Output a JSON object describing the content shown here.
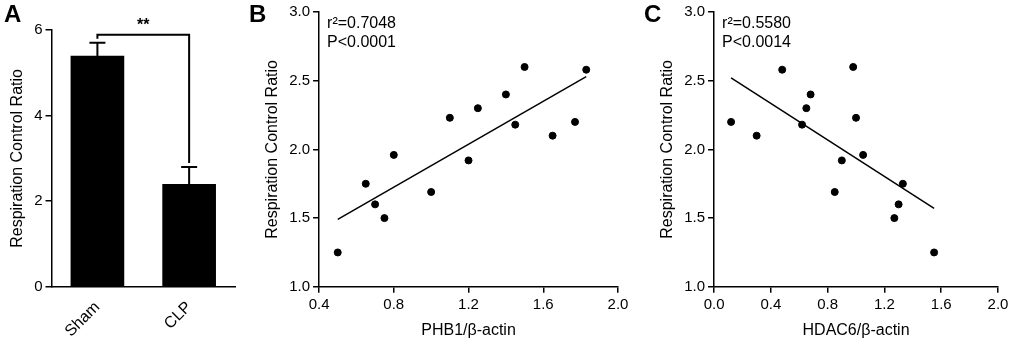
{
  "chart_data": [
    {
      "panel": "A",
      "type": "bar",
      "categories": [
        "Sham",
        "CLP"
      ],
      "values": [
        5.4,
        2.4
      ],
      "errors": [
        0.3,
        0.4
      ],
      "color": "#000000",
      "y_label": "Respiration Control Ratio",
      "ylim": [
        0,
        6
      ],
      "yticks": [
        0,
        2,
        4,
        6
      ],
      "grid": false,
      "significance": {
        "pair": [
          "Sham",
          "CLP"
        ],
        "label": "**"
      }
    },
    {
      "panel": "B",
      "type": "scatter",
      "x": [
        0.5,
        0.65,
        0.7,
        0.75,
        0.8,
        1.0,
        1.1,
        1.2,
        1.25,
        1.4,
        1.45,
        1.5,
        1.65,
        1.77,
        1.83
      ],
      "values": [
        1.25,
        1.75,
        1.6,
        1.5,
        1.96,
        1.69,
        2.23,
        1.92,
        2.3,
        2.4,
        2.18,
        2.6,
        2.1,
        2.2,
        2.58
      ],
      "fit_line": {
        "x": [
          0.5,
          1.83
        ],
        "values": [
          1.49,
          2.53
        ]
      },
      "color": "#000000",
      "marker": "circle",
      "x_label": "PHB1/β-actin",
      "y_label": "Respiration Control Ratio",
      "xlim": [
        0.4,
        2.0
      ],
      "xticks": [
        0.4,
        0.8,
        1.2,
        1.6,
        {
          "value": 2,
          "label": "2.0"
        }
      ],
      "ylim": [
        1,
        3
      ],
      "yticks": [
        {
          "value": 1,
          "label": "1.0"
        },
        1.5,
        {
          "value": 2,
          "label": "2.0"
        },
        2.5,
        {
          "value": 3,
          "label": "3.0"
        }
      ],
      "annotations": [
        "r²=0.7048",
        "P<0.0001"
      ],
      "grid": false
    },
    {
      "panel": "C",
      "type": "scatter",
      "x": [
        0.12,
        0.3,
        0.48,
        0.62,
        0.65,
        0.68,
        0.85,
        0.9,
        0.98,
        1.0,
        1.05,
        1.27,
        1.3,
        1.33,
        1.55
      ],
      "values": [
        2.2,
        2.1,
        2.58,
        2.18,
        2.3,
        2.4,
        1.69,
        1.92,
        2.6,
        2.23,
        1.96,
        1.5,
        1.6,
        1.75,
        1.25
      ],
      "fit_line": {
        "x": [
          0.12,
          1.55
        ],
        "values": [
          2.52,
          1.57
        ]
      },
      "color": "#000000",
      "marker": "circle",
      "x_label": "HDAC6/β-actin",
      "y_label": "Respiration Control Ratio",
      "xlim": [
        0,
        2.0
      ],
      "xticks": [
        {
          "value": 0,
          "label": "0.0"
        },
        0.4,
        0.8,
        1.2,
        1.6,
        {
          "value": 2,
          "label": "2.0"
        }
      ],
      "ylim": [
        1,
        3
      ],
      "yticks": [
        {
          "value": 1,
          "label": "1.0"
        },
        1.5,
        {
          "value": 2,
          "label": "2.0"
        },
        2.5,
        {
          "value": 3,
          "label": "3.0"
        }
      ],
      "annotations": [
        "r²=0.5580",
        "P<0.0014"
      ],
      "grid": false
    }
  ]
}
